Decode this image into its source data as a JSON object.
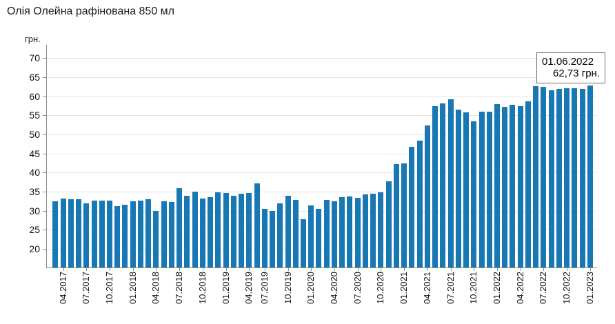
{
  "title": "Олія Олейна рафінована 850 мл",
  "chart_data": {
    "type": "bar",
    "title": "Олія Олейна рафінована 850 мл",
    "xlabel": "",
    "ylabel": "грн.",
    "ylim": [
      15.1,
      73.5
    ],
    "y_ticks": [
      20,
      25,
      30,
      35,
      40,
      45,
      50,
      55,
      60,
      65,
      70
    ],
    "grid": true,
    "bar_color": "#1878b4",
    "categories": [
      "03.2017",
      "04.2017",
      "05.2017",
      "06.2017",
      "07.2017",
      "08.2017",
      "09.2017",
      "10.2017",
      "11.2017",
      "12.2017",
      "01.2018",
      "02.2018",
      "03.2018",
      "04.2018",
      "05.2018",
      "06.2018",
      "07.2018",
      "08.2018",
      "09.2018",
      "10.2018",
      "11.2018",
      "12.2018",
      "01.2019",
      "02.2019",
      "03.2019",
      "04.2019",
      "05.2019",
      "07.2019",
      "08.2019",
      "09.2019",
      "10.2019",
      "11.2019",
      "12.2019",
      "01.2020",
      "02.2020",
      "03.2020",
      "04.2020",
      "05.2020",
      "06.2020",
      "07.2020",
      "08.2020",
      "09.2020",
      "10.2020",
      "11.2020",
      "12.2020",
      "01.2021",
      "02.2021",
      "03.2021",
      "04.2021",
      "05.2021",
      "06.2021",
      "07.2021",
      "08.2021",
      "09.2021",
      "10.2021",
      "11.2021",
      "12.2021",
      "01.2022",
      "02.2022",
      "03.2022",
      "04.2022",
      "05.2022",
      "06.2022",
      "07.2022",
      "08.2022",
      "09.2022",
      "10.2022",
      "11.2022",
      "12.2022",
      "01.2023"
    ],
    "values": [
      32.4,
      33.2,
      33.0,
      33.0,
      32.0,
      32.7,
      32.6,
      32.7,
      31.2,
      31.5,
      32.4,
      32.7,
      33.0,
      30.0,
      32.4,
      32.2,
      35.9,
      34.0,
      35.0,
      33.2,
      33.6,
      34.8,
      34.7,
      34.0,
      34.4,
      34.7,
      37.1,
      30.4,
      29.9,
      31.9,
      34.0,
      32.9,
      27.7,
      31.3,
      30.5,
      32.9,
      32.4,
      33.5,
      33.8,
      33.3,
      34.2,
      34.5,
      34.9,
      37.8,
      42.2,
      42.5,
      46.8,
      48.4,
      52.4,
      57.4,
      58.1,
      59.3,
      56.5,
      55.7,
      53.4,
      56.0,
      55.9,
      58.0,
      57.3,
      57.7,
      57.4,
      58.7,
      62.73,
      62.4,
      61.6,
      62.0,
      62.2,
      62.2,
      61.9,
      62.9
    ],
    "x_labeled_ticks": [
      "04.2017",
      "07.2017",
      "10.2017",
      "01.2018",
      "04.2018",
      "07.2018",
      "10.2018",
      "01.2019",
      "04.2019",
      "07.2019",
      "10.2019",
      "01.2020",
      "04.2020",
      "07.2020",
      "10.2020",
      "01.2021",
      "04.2021",
      "07.2021",
      "10.2021",
      "01.2022",
      "04.2022",
      "07.2022",
      "10.2022",
      "01.2023"
    ],
    "annotation": {
      "date": "01.06.2022",
      "value_text": "62,73 грн."
    }
  }
}
